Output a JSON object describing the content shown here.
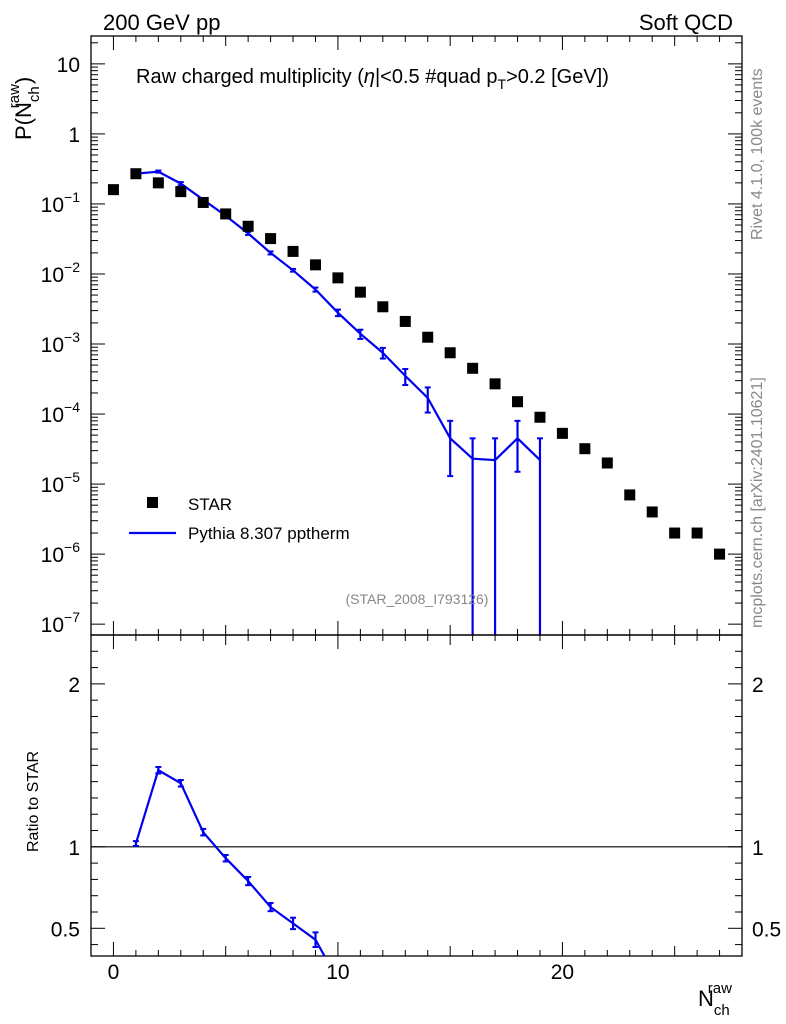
{
  "header": {
    "left": "200 GeV pp",
    "right": "Soft QCD"
  },
  "side_text": {
    "rivet": "Rivet 4.1.0,  100k events",
    "mcplots": "mcplots.cern.ch [arXiv:2401.10621]"
  },
  "colors": {
    "mc": "#0000ee",
    "data": "#000000",
    "grey_text": "#888888"
  },
  "chart_data": [
    {
      "type": "scatter",
      "name": "main",
      "title_parts": {
        "a": "Raw charged multiplicity (",
        "b": "|<0.5 #quad p",
        "b_sub": "T",
        "c": ">0.2 [GeV])"
      },
      "ylabel": {
        "main": "P(N",
        "sub": "ch",
        "sup": "raw",
        "close": ")"
      },
      "analysis_id": "(STAR_2008_I793126)",
      "yscale": "log",
      "ylim": [
        7e-08,
        25
      ],
      "xlim": [
        -1,
        28
      ],
      "y_tick_labels": [
        {
          "v": 10,
          "base": "10",
          "exp": ""
        },
        {
          "v": 1,
          "base": "1",
          "exp": ""
        },
        {
          "v": 0.1,
          "base": "10",
          "exp": "−1"
        },
        {
          "v": 0.01,
          "base": "10",
          "exp": "−2"
        },
        {
          "v": 0.001,
          "base": "10",
          "exp": "−3"
        },
        {
          "v": 0.0001,
          "base": "10",
          "exp": "−4"
        },
        {
          "v": 1e-05,
          "base": "10",
          "exp": "−5"
        },
        {
          "v": 1e-06,
          "base": "10",
          "exp": "−6"
        },
        {
          "v": 1e-07,
          "base": "10",
          "exp": "−7"
        }
      ],
      "legend": {
        "position": "bottom-left",
        "data_label": "STAR",
        "mc_label": "Pythia 8.307 pptherm"
      },
      "series": [
        {
          "name": "STAR",
          "style": "markers",
          "x": [
            0,
            1,
            2,
            3,
            4,
            5,
            6,
            7,
            8,
            9,
            10,
            11,
            12,
            13,
            14,
            15,
            16,
            17,
            18,
            19,
            20,
            21,
            22,
            23,
            24,
            25,
            26,
            27
          ],
          "y": [
            0.16,
            0.27,
            0.2,
            0.15,
            0.105,
            0.072,
            0.048,
            0.032,
            0.021,
            0.0135,
            0.0088,
            0.0055,
            0.0034,
            0.0021,
            0.00125,
            0.00075,
            0.00045,
            0.00027,
            0.00015,
            9e-05,
            5.3e-05,
            3.2e-05,
            2e-05,
            7e-06,
            4e-06,
            2e-06,
            2e-06,
            1e-06
          ]
        },
        {
          "name": "Pythia 8.307 pptherm",
          "style": "line",
          "x": [
            1,
            2,
            3,
            4,
            5,
            6,
            7,
            8,
            9,
            10,
            11,
            12,
            13,
            14,
            15,
            16,
            17,
            18,
            19
          ],
          "y": [
            0.27,
            0.29,
            0.195,
            0.115,
            0.068,
            0.038,
            0.02,
            0.0113,
            0.006,
            0.0028,
            0.0014,
            0.00075,
            0.00035,
            0.00017,
            4.5e-05,
            2.3e-05,
            2.2e-05,
            4.5e-05,
            2.2e-05
          ],
          "err_low": [
            0.26,
            0.28,
            0.185,
            0.11,
            0.065,
            0.036,
            0.019,
            0.0108,
            0.0056,
            0.0025,
            0.00118,
            0.00062,
            0.00026,
            0.000105,
            1.3e-05,
            6e-08,
            6e-08,
            1.5e-05,
            6e-08
          ],
          "err_high": [
            0.28,
            0.3,
            0.205,
            0.12,
            0.071,
            0.04,
            0.021,
            0.0118,
            0.0064,
            0.0031,
            0.0016,
            0.00088,
            0.00044,
            0.00024,
            8e-05,
            4.5e-05,
            4.5e-05,
            8e-05,
            4.5e-05
          ]
        }
      ]
    },
    {
      "type": "line",
      "name": "ratio",
      "ylabel": "Ratio to STAR",
      "xlabel": {
        "main": "N",
        "sub": "ch",
        "sup": "raw"
      },
      "ylim": [
        0.33,
        2.3
      ],
      "xlim": [
        -1,
        28
      ],
      "y_tick_labels": [
        {
          "v": 2,
          "label": "2"
        },
        {
          "v": 1,
          "label": "1"
        },
        {
          "v": 0.5,
          "label": "0.5"
        }
      ],
      "x_tick_labels": [
        {
          "v": 0,
          "label": "0"
        },
        {
          "v": 10,
          "label": "10"
        },
        {
          "v": 20,
          "label": "20"
        }
      ],
      "reference_line": 1,
      "series": [
        {
          "name": "Pythia 8.307 pptherm / STAR",
          "x": [
            1,
            2,
            3,
            4,
            5,
            6,
            7,
            8,
            9,
            9.4
          ],
          "y": [
            1.02,
            1.47,
            1.39,
            1.09,
            0.93,
            0.79,
            0.63,
            0.53,
            0.43,
            0.33
          ],
          "err": [
            0.015,
            0.02,
            0.02,
            0.02,
            0.02,
            0.025,
            0.025,
            0.035,
            0.045,
            0
          ]
        }
      ]
    }
  ]
}
